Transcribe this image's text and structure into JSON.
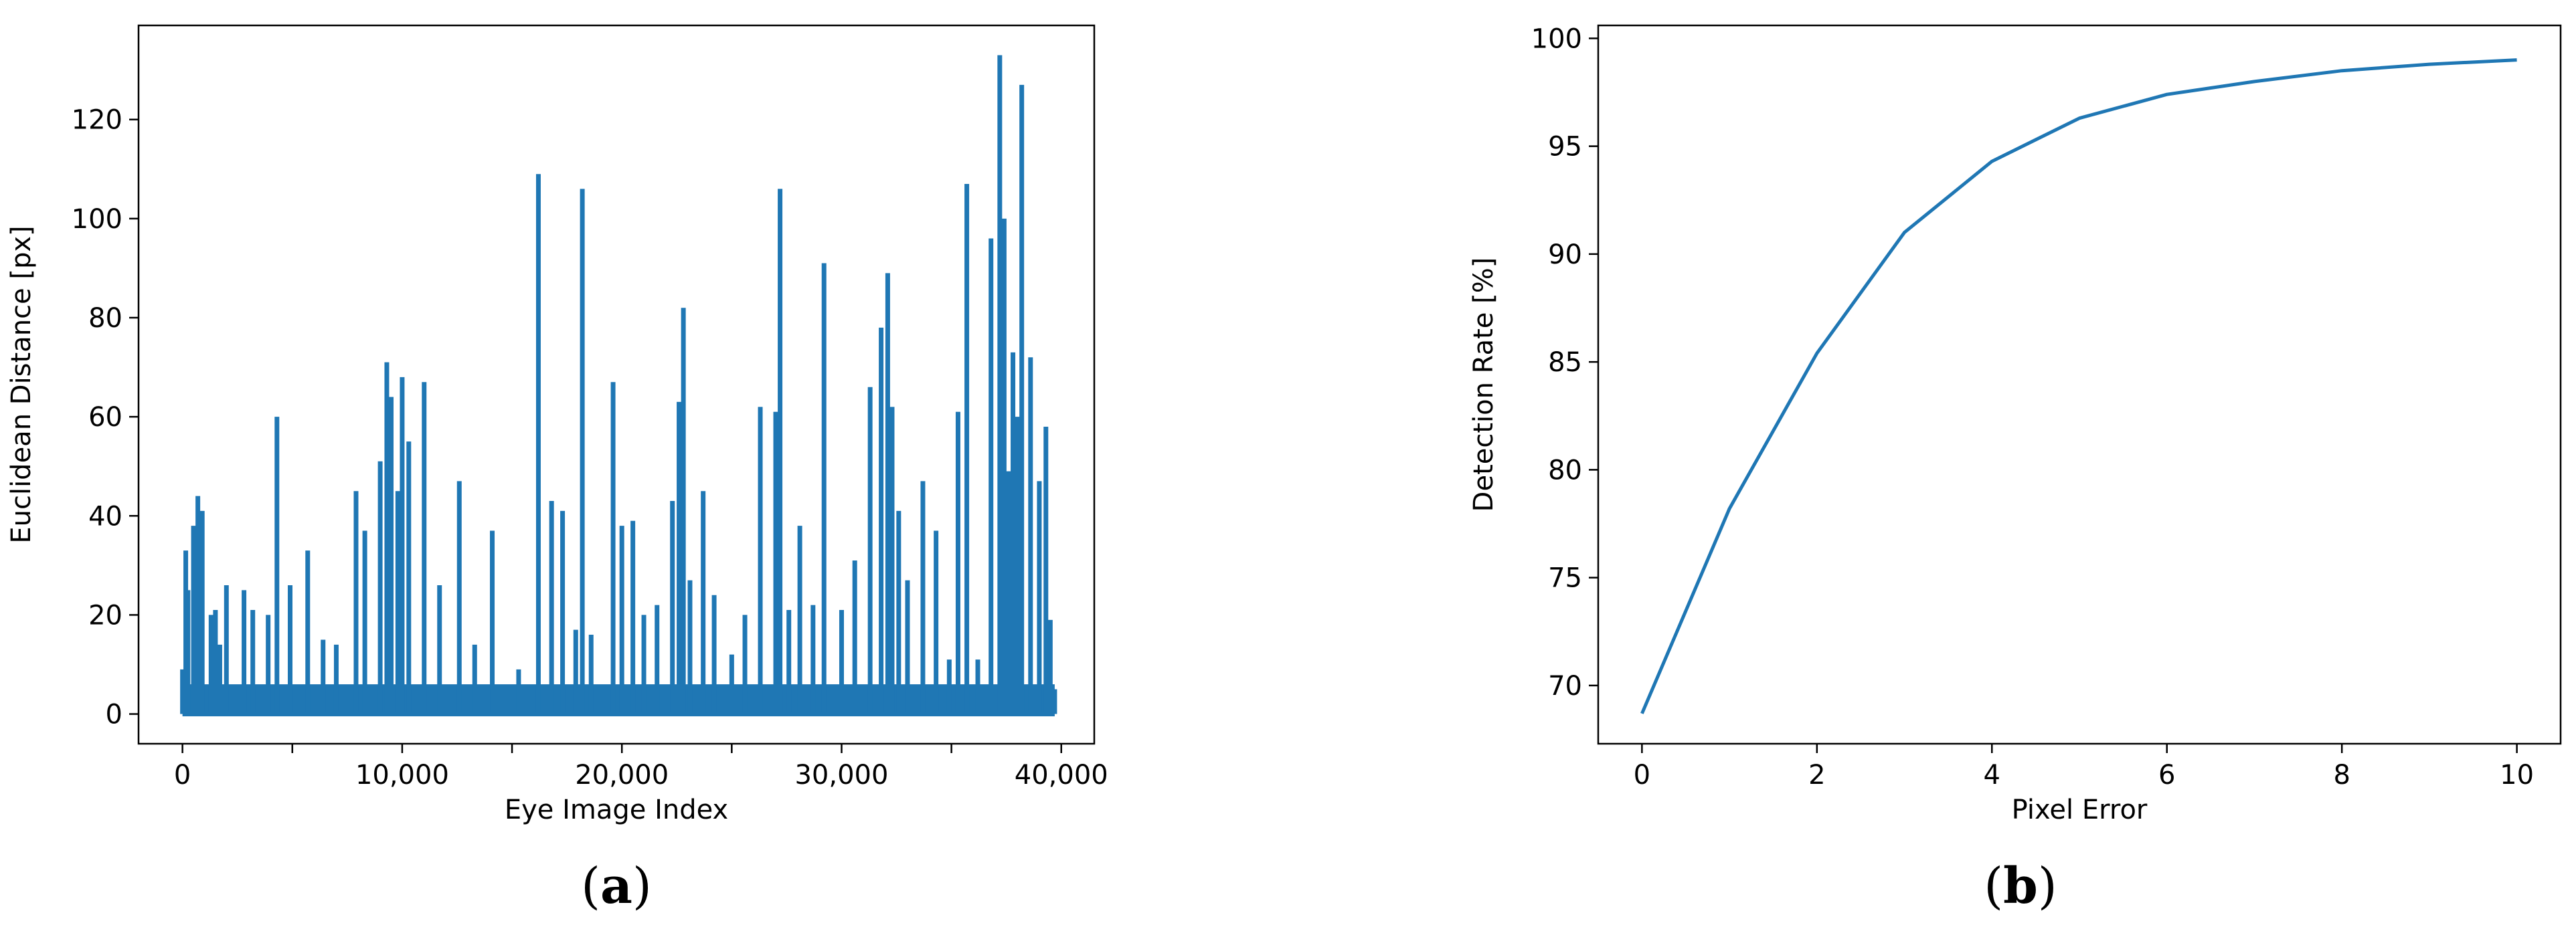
{
  "chart_data": [
    {
      "type": "line",
      "panel_label": "(a)",
      "panel_letter": "a",
      "xlabel": "Eye Image Index",
      "ylabel": "Euclidean Distance [px]",
      "xlim": [
        -2000,
        41500
      ],
      "ylim": [
        -6,
        139
      ],
      "xticks": [
        0,
        5000,
        10000,
        15000,
        20000,
        25000,
        30000,
        35000,
        40000
      ],
      "xtick_labels": [
        "0",
        "",
        "10,000",
        "",
        "20,000",
        "",
        "30,000",
        "",
        "40,000"
      ],
      "yticks": [
        0,
        20,
        40,
        60,
        80,
        100,
        120
      ],
      "ytick_labels": [
        "0",
        "20",
        "40",
        "60",
        "80",
        "100",
        "120"
      ],
      "grid": false,
      "color": "#1f77b4",
      "series": [
        {
          "x": [
            0,
            150,
            250,
            500,
            700,
            900,
            1300,
            1500,
            1700,
            2000,
            2800,
            3200,
            3900,
            4300,
            4900,
            5700,
            6400,
            7000,
            7900,
            8300,
            9000,
            9300,
            9500,
            9800,
            10000,
            10300,
            11000,
            11700,
            12600,
            13300,
            14100,
            15300,
            16200,
            16800,
            17300,
            17900,
            18200,
            18600,
            19600,
            20000,
            20500,
            21000,
            21600,
            22300,
            22600,
            22800,
            23100,
            23700,
            24200,
            25000,
            25600,
            26300,
            27000,
            27200,
            27600,
            28100,
            28700,
            29200,
            30000,
            30600,
            31300,
            31800,
            32100,
            32300,
            32600,
            33000,
            33700,
            34300,
            34900,
            35300,
            35700,
            36200,
            36800,
            37200,
            37400,
            37600,
            37800,
            38000,
            38200,
            38600,
            39000,
            39300,
            39500,
            39700
          ],
          "y": [
            9,
            33,
            25,
            38,
            44,
            41,
            20,
            21,
            14,
            26,
            25,
            21,
            20,
            60,
            26,
            33,
            15,
            14,
            45,
            37,
            51,
            71,
            64,
            45,
            68,
            55,
            67,
            26,
            47,
            14,
            37,
            9,
            109,
            43,
            41,
            17,
            106,
            16,
            67,
            38,
            39,
            20,
            22,
            43,
            63,
            82,
            27,
            45,
            24,
            12,
            20,
            62,
            61,
            106,
            21,
            38,
            22,
            91,
            21,
            31,
            66,
            78,
            89,
            62,
            41,
            27,
            47,
            37,
            11,
            61,
            107,
            11,
            96,
            133,
            100,
            49,
            73,
            60,
            127,
            72,
            47,
            58,
            19,
            5
          ]
        }
      ]
    },
    {
      "type": "line",
      "panel_label": "(b)",
      "panel_letter": "b",
      "xlabel": "Pixel Error",
      "ylabel": "Detection Rate [%]",
      "xlim": [
        -0.5,
        10.5
      ],
      "ylim": [
        67.3,
        100.6
      ],
      "xticks": [
        0,
        2,
        4,
        6,
        8,
        10
      ],
      "xtick_labels": [
        "0",
        "2",
        "4",
        "6",
        "8",
        "10"
      ],
      "yticks": [
        70,
        75,
        80,
        85,
        90,
        95,
        100
      ],
      "ytick_labels": [
        "70",
        "75",
        "80",
        "85",
        "90",
        "95",
        "100"
      ],
      "grid": false,
      "color": "#1f77b4",
      "series": [
        {
          "x": [
            0,
            1,
            2,
            3,
            4,
            5,
            6,
            7,
            8,
            9,
            10
          ],
          "y": [
            68.7,
            78.2,
            85.4,
            91.0,
            94.3,
            96.3,
            97.4,
            98.0,
            98.5,
            98.8,
            99.0
          ]
        }
      ]
    }
  ]
}
